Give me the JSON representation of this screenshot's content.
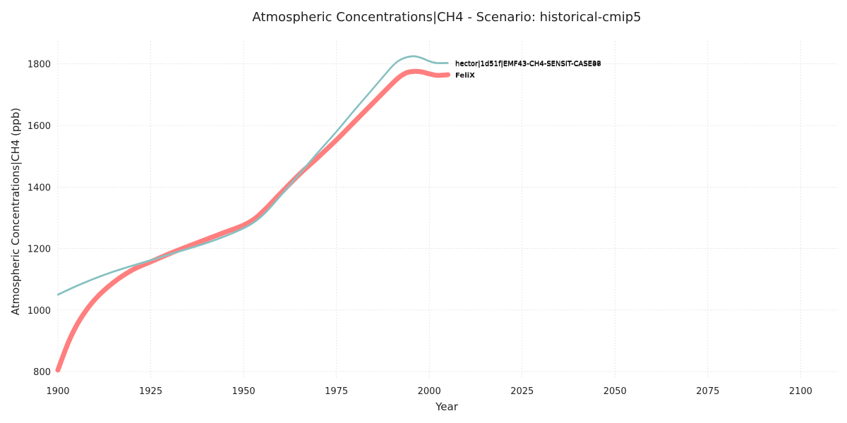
{
  "chart_data": {
    "type": "line",
    "title": "Atmospheric Concentrations|CH4 - Scenario: historical-cmip5",
    "xlabel": "Year",
    "ylabel": "Atmospheric Concentrations|CH4 (ppb)",
    "xlim": [
      1900,
      2110
    ],
    "ylim": [
      775,
      1875
    ],
    "xticks": [
      1900,
      1925,
      1950,
      1975,
      2000,
      2025,
      2050,
      2075,
      2100
    ],
    "yticks": [
      800,
      1000,
      1200,
      1400,
      1600,
      1800
    ],
    "grid": true,
    "legend": "inline-end-labels",
    "series": [
      {
        "name": "FeliX",
        "color": "#ff7f7f",
        "line_width": 7,
        "x": [
          1900,
          1903,
          1906,
          1910,
          1915,
          1920,
          1925,
          1930,
          1935,
          1940,
          1945,
          1950,
          1953,
          1956,
          1960,
          1965,
          1970,
          1975,
          1980,
          1985,
          1990,
          1992,
          1994,
          1996,
          1998,
          2000,
          2002,
          2004,
          2005
        ],
        "y": [
          805,
          900,
          970,
          1035,
          1090,
          1130,
          1157,
          1183,
          1207,
          1230,
          1253,
          1276,
          1297,
          1330,
          1380,
          1441,
          1496,
          1553,
          1614,
          1675,
          1736,
          1758,
          1772,
          1776,
          1774,
          1768,
          1763,
          1764,
          1765
        ]
      },
      {
        "name": "hector|1d51f|EMF43-CH4-SENSIT-CASE48",
        "color": "#92cacb",
        "line_width": 2,
        "x": [
          1900,
          1905,
          1910,
          1915,
          1920,
          1925,
          1930,
          1935,
          1940,
          1945,
          1950,
          1953,
          1956,
          1960,
          1965,
          1970,
          1975,
          1980,
          1985,
          1990,
          1992,
          1994,
          1996,
          1998,
          2000,
          2002,
          2005
        ],
        "y": [
          1050,
          1078,
          1103,
          1125,
          1144,
          1162,
          1181,
          1199,
          1218,
          1240,
          1266,
          1287,
          1318,
          1372,
          1442,
          1512,
          1580,
          1652,
          1722,
          1792,
          1812,
          1822,
          1825,
          1819,
          1809,
          1803,
          1803
        ]
      },
      {
        "name": "hector|1d51f|EMF43-CH4-SENSIT-CASE22",
        "color": "#8cc4c6",
        "line_width": 2,
        "x": [
          1900,
          1905,
          1910,
          1915,
          1920,
          1925,
          1930,
          1935,
          1940,
          1945,
          1950,
          1953,
          1956,
          1960,
          1965,
          1970,
          1975,
          1980,
          1985,
          1990,
          1992,
          1994,
          1996,
          1998,
          2000,
          2002,
          2005
        ],
        "y": [
          1051,
          1079,
          1104,
          1126,
          1145,
          1163,
          1182,
          1200,
          1219,
          1241,
          1267,
          1288,
          1319,
          1373,
          1443,
          1513,
          1581,
          1653,
          1723,
          1793,
          1813,
          1823,
          1826,
          1820,
          1810,
          1804,
          1804
        ]
      },
      {
        "name": "hector|1d51f|EMF43-CH4-SENSIT-CASE07",
        "color": "#99cfcf",
        "line_width": 2,
        "x": [
          1900,
          1905,
          1910,
          1915,
          1920,
          1925,
          1930,
          1935,
          1940,
          1945,
          1950,
          1953,
          1956,
          1960,
          1965,
          1970,
          1975,
          1980,
          1985,
          1990,
          1992,
          1994,
          1996,
          1998,
          2000,
          2002,
          2005
        ],
        "y": [
          1049,
          1077,
          1102,
          1124,
          1143,
          1161,
          1180,
          1198,
          1217,
          1239,
          1265,
          1286,
          1317,
          1371,
          1441,
          1511,
          1579,
          1651,
          1721,
          1791,
          1811,
          1821,
          1824,
          1818,
          1808,
          1802,
          1802
        ]
      },
      {
        "name": "hector|1d51f|EMF43-CH4-SENSIT-CASE36",
        "color": "#86bfc1",
        "line_width": 2,
        "x": [
          1900,
          1905,
          1910,
          1915,
          1920,
          1925,
          1930,
          1935,
          1940,
          1945,
          1950,
          1953,
          1956,
          1960,
          1965,
          1970,
          1975,
          1980,
          1985,
          1990,
          1992,
          1994,
          1996,
          1998,
          2000,
          2002,
          2005
        ],
        "y": [
          1050,
          1078,
          1103,
          1125,
          1144,
          1162,
          1181,
          1199,
          1218,
          1240,
          1266,
          1287,
          1318,
          1372,
          1442,
          1512,
          1580,
          1652,
          1722,
          1792,
          1812,
          1822,
          1825,
          1819,
          1809,
          1803,
          1803
        ]
      }
    ]
  }
}
